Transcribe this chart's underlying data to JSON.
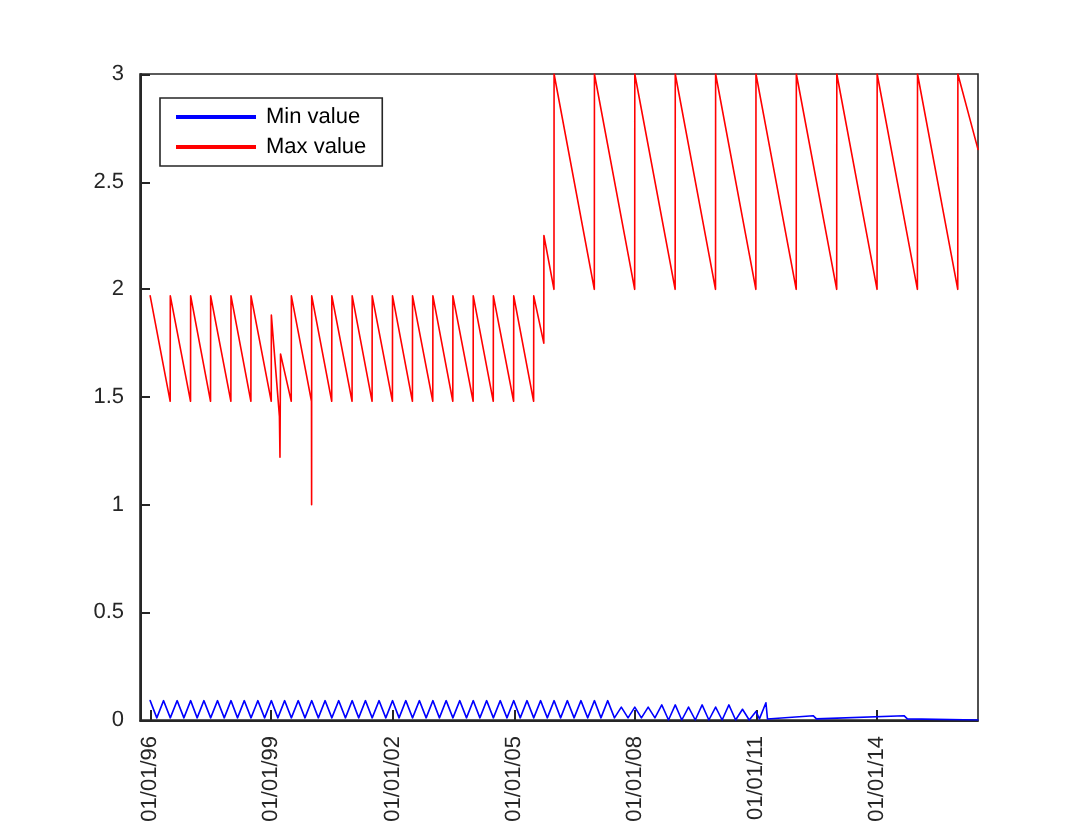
{
  "chart_data": {
    "type": "line",
    "xlim": [
      "1995-10-01",
      "2016-07-01"
    ],
    "ylim": [
      0,
      3
    ],
    "xticks": [
      {
        "value": "1996-01-01",
        "label": "01/01/96"
      },
      {
        "value": "1999-01-01",
        "label": "01/01/99"
      },
      {
        "value": "2002-01-01",
        "label": "01/01/02"
      },
      {
        "value": "2005-01-01",
        "label": "01/01/05"
      },
      {
        "value": "2008-01-01",
        "label": "01/01/08"
      },
      {
        "value": "2011-01-01",
        "label": "01/01/11"
      },
      {
        "value": "2014-01-01",
        "label": "01/01/14"
      }
    ],
    "yticks": [
      0,
      0.5,
      1,
      1.5,
      2,
      2.5,
      3
    ],
    "grid": false,
    "legend": "top left",
    "marker": "none",
    "line_style": "solid",
    "series": [
      {
        "name": "Min value",
        "color": "#0000ff",
        "x": [
          "1996-01-01",
          "1996-03-01",
          "1996-05-01",
          "1996-07-01",
          "1996-09-01",
          "1996-11-01",
          "1997-01-01",
          "1997-03-01",
          "1997-05-01",
          "1997-07-01",
          "1997-09-01",
          "1997-11-01",
          "1998-01-01",
          "1998-03-01",
          "1998-05-01",
          "1998-07-01",
          "1998-09-01",
          "1998-11-01",
          "1999-01-01",
          "1999-03-01",
          "1999-05-01",
          "1999-07-01",
          "1999-09-01",
          "1999-11-01",
          "2000-01-01",
          "2000-03-01",
          "2000-05-01",
          "2000-07-01",
          "2000-09-01",
          "2000-11-01",
          "2001-01-01",
          "2001-03-01",
          "2001-05-01",
          "2001-07-01",
          "2001-09-01",
          "2001-11-01",
          "2002-01-01",
          "2002-03-01",
          "2002-05-01",
          "2002-07-01",
          "2002-09-01",
          "2002-11-01",
          "2003-01-01",
          "2003-03-01",
          "2003-05-01",
          "2003-07-01",
          "2003-09-01",
          "2003-11-01",
          "2004-01-01",
          "2004-03-01",
          "2004-05-01",
          "2004-07-01",
          "2004-09-01",
          "2004-11-01",
          "2005-01-01",
          "2005-03-01",
          "2005-05-01",
          "2005-07-01",
          "2005-09-01",
          "2005-11-01",
          "2006-01-01",
          "2006-03-01",
          "2006-05-01",
          "2006-07-01",
          "2006-09-01",
          "2006-11-01",
          "2007-01-01",
          "2007-03-01",
          "2007-05-01",
          "2007-07-01",
          "2007-09-01",
          "2007-11-01",
          "2008-01-01",
          "2008-03-01",
          "2008-05-01",
          "2008-07-01",
          "2008-09-01",
          "2008-11-01",
          "2009-01-01",
          "2009-03-01",
          "2009-05-01",
          "2009-07-01",
          "2009-09-01",
          "2009-11-01",
          "2010-01-01",
          "2010-03-01",
          "2010-05-01",
          "2010-07-01",
          "2010-09-01",
          "2010-11-01",
          "2011-01-01",
          "2011-02-01",
          "2011-04-01",
          "2011-04-15",
          "2012-06-01",
          "2012-07-01",
          "2014-09-01",
          "2014-10-01",
          "2016-07-01"
        ],
        "values": [
          0.09,
          0.01,
          0.09,
          0.01,
          0.09,
          0.01,
          0.09,
          0.01,
          0.09,
          0.01,
          0.09,
          0.01,
          0.09,
          0.01,
          0.09,
          0.01,
          0.09,
          0.01,
          0.09,
          0.01,
          0.09,
          0.01,
          0.09,
          0.01,
          0.09,
          0.01,
          0.09,
          0.01,
          0.09,
          0.01,
          0.09,
          0.01,
          0.09,
          0.01,
          0.09,
          0.01,
          0.09,
          0.01,
          0.09,
          0.01,
          0.09,
          0.01,
          0.09,
          0.01,
          0.09,
          0.01,
          0.09,
          0.01,
          0.09,
          0.01,
          0.09,
          0.01,
          0.09,
          0.01,
          0.09,
          0.01,
          0.09,
          0.01,
          0.09,
          0.01,
          0.09,
          0.01,
          0.09,
          0.01,
          0.09,
          0.01,
          0.09,
          0.01,
          0.09,
          0.01,
          0.06,
          0.01,
          0.06,
          0.01,
          0.06,
          0.01,
          0.07,
          0,
          0.07,
          0,
          0.06,
          0,
          0.07,
          0,
          0.06,
          0,
          0.07,
          0,
          0.05,
          0,
          0.04,
          0.005,
          0.08,
          0.005,
          0.02,
          0.005,
          0.02,
          0.005,
          0
        ]
      },
      {
        "name": "Max value",
        "color": "#ff0000",
        "x": [
          "1996-01-01",
          "1996-06-30",
          "1996-07-01",
          "1996-12-31",
          "1997-01-01",
          "1997-06-30",
          "1997-07-01",
          "1997-12-31",
          "1998-01-01",
          "1998-06-30",
          "1998-07-01",
          "1998-12-31",
          "1999-01-01",
          "1999-03-15",
          "1999-03-20",
          "1999-03-25",
          "1999-06-30",
          "1999-07-01",
          "1999-12-30",
          "1999-12-31",
          "2000-01-01",
          "2000-06-30",
          "2000-07-01",
          "2000-12-31",
          "2001-01-01",
          "2001-06-30",
          "2001-07-01",
          "2001-12-31",
          "2002-01-01",
          "2002-06-30",
          "2002-07-01",
          "2002-12-31",
          "2003-01-01",
          "2003-06-30",
          "2003-07-01",
          "2003-12-31",
          "2004-01-01",
          "2004-06-30",
          "2004-07-01",
          "2004-12-31",
          "2005-01-01",
          "2005-06-30",
          "2005-07-01",
          "2005-09-30",
          "2005-10-01",
          "2005-12-31",
          "2006-01-01",
          "2006-12-31",
          "2007-01-01",
          "2007-12-31",
          "2008-01-01",
          "2008-12-31",
          "2009-01-01",
          "2009-12-31",
          "2010-01-01",
          "2010-12-31",
          "2011-01-01",
          "2011-12-31",
          "2012-01-01",
          "2012-12-31",
          "2013-01-01",
          "2013-12-31",
          "2014-01-01",
          "2014-12-31",
          "2015-01-01",
          "2015-12-31",
          "2016-01-01",
          "2016-07-01"
        ],
        "values": [
          1.97,
          1.48,
          1.97,
          1.48,
          1.97,
          1.48,
          1.97,
          1.48,
          1.97,
          1.48,
          1.97,
          1.48,
          1.88,
          1.41,
          1.22,
          1.7,
          1.48,
          1.97,
          1.48,
          1,
          1.97,
          1.48,
          1.97,
          1.48,
          1.97,
          1.48,
          1.97,
          1.48,
          1.97,
          1.48,
          1.97,
          1.48,
          1.97,
          1.48,
          1.97,
          1.48,
          1.97,
          1.48,
          1.97,
          1.48,
          1.97,
          1.48,
          1.97,
          1.75,
          2.25,
          2,
          3,
          2,
          3,
          2,
          3,
          2,
          3,
          2,
          3,
          2,
          3,
          2,
          3,
          2,
          3,
          2,
          3,
          2,
          3,
          2,
          3,
          2.65
        ]
      }
    ]
  }
}
